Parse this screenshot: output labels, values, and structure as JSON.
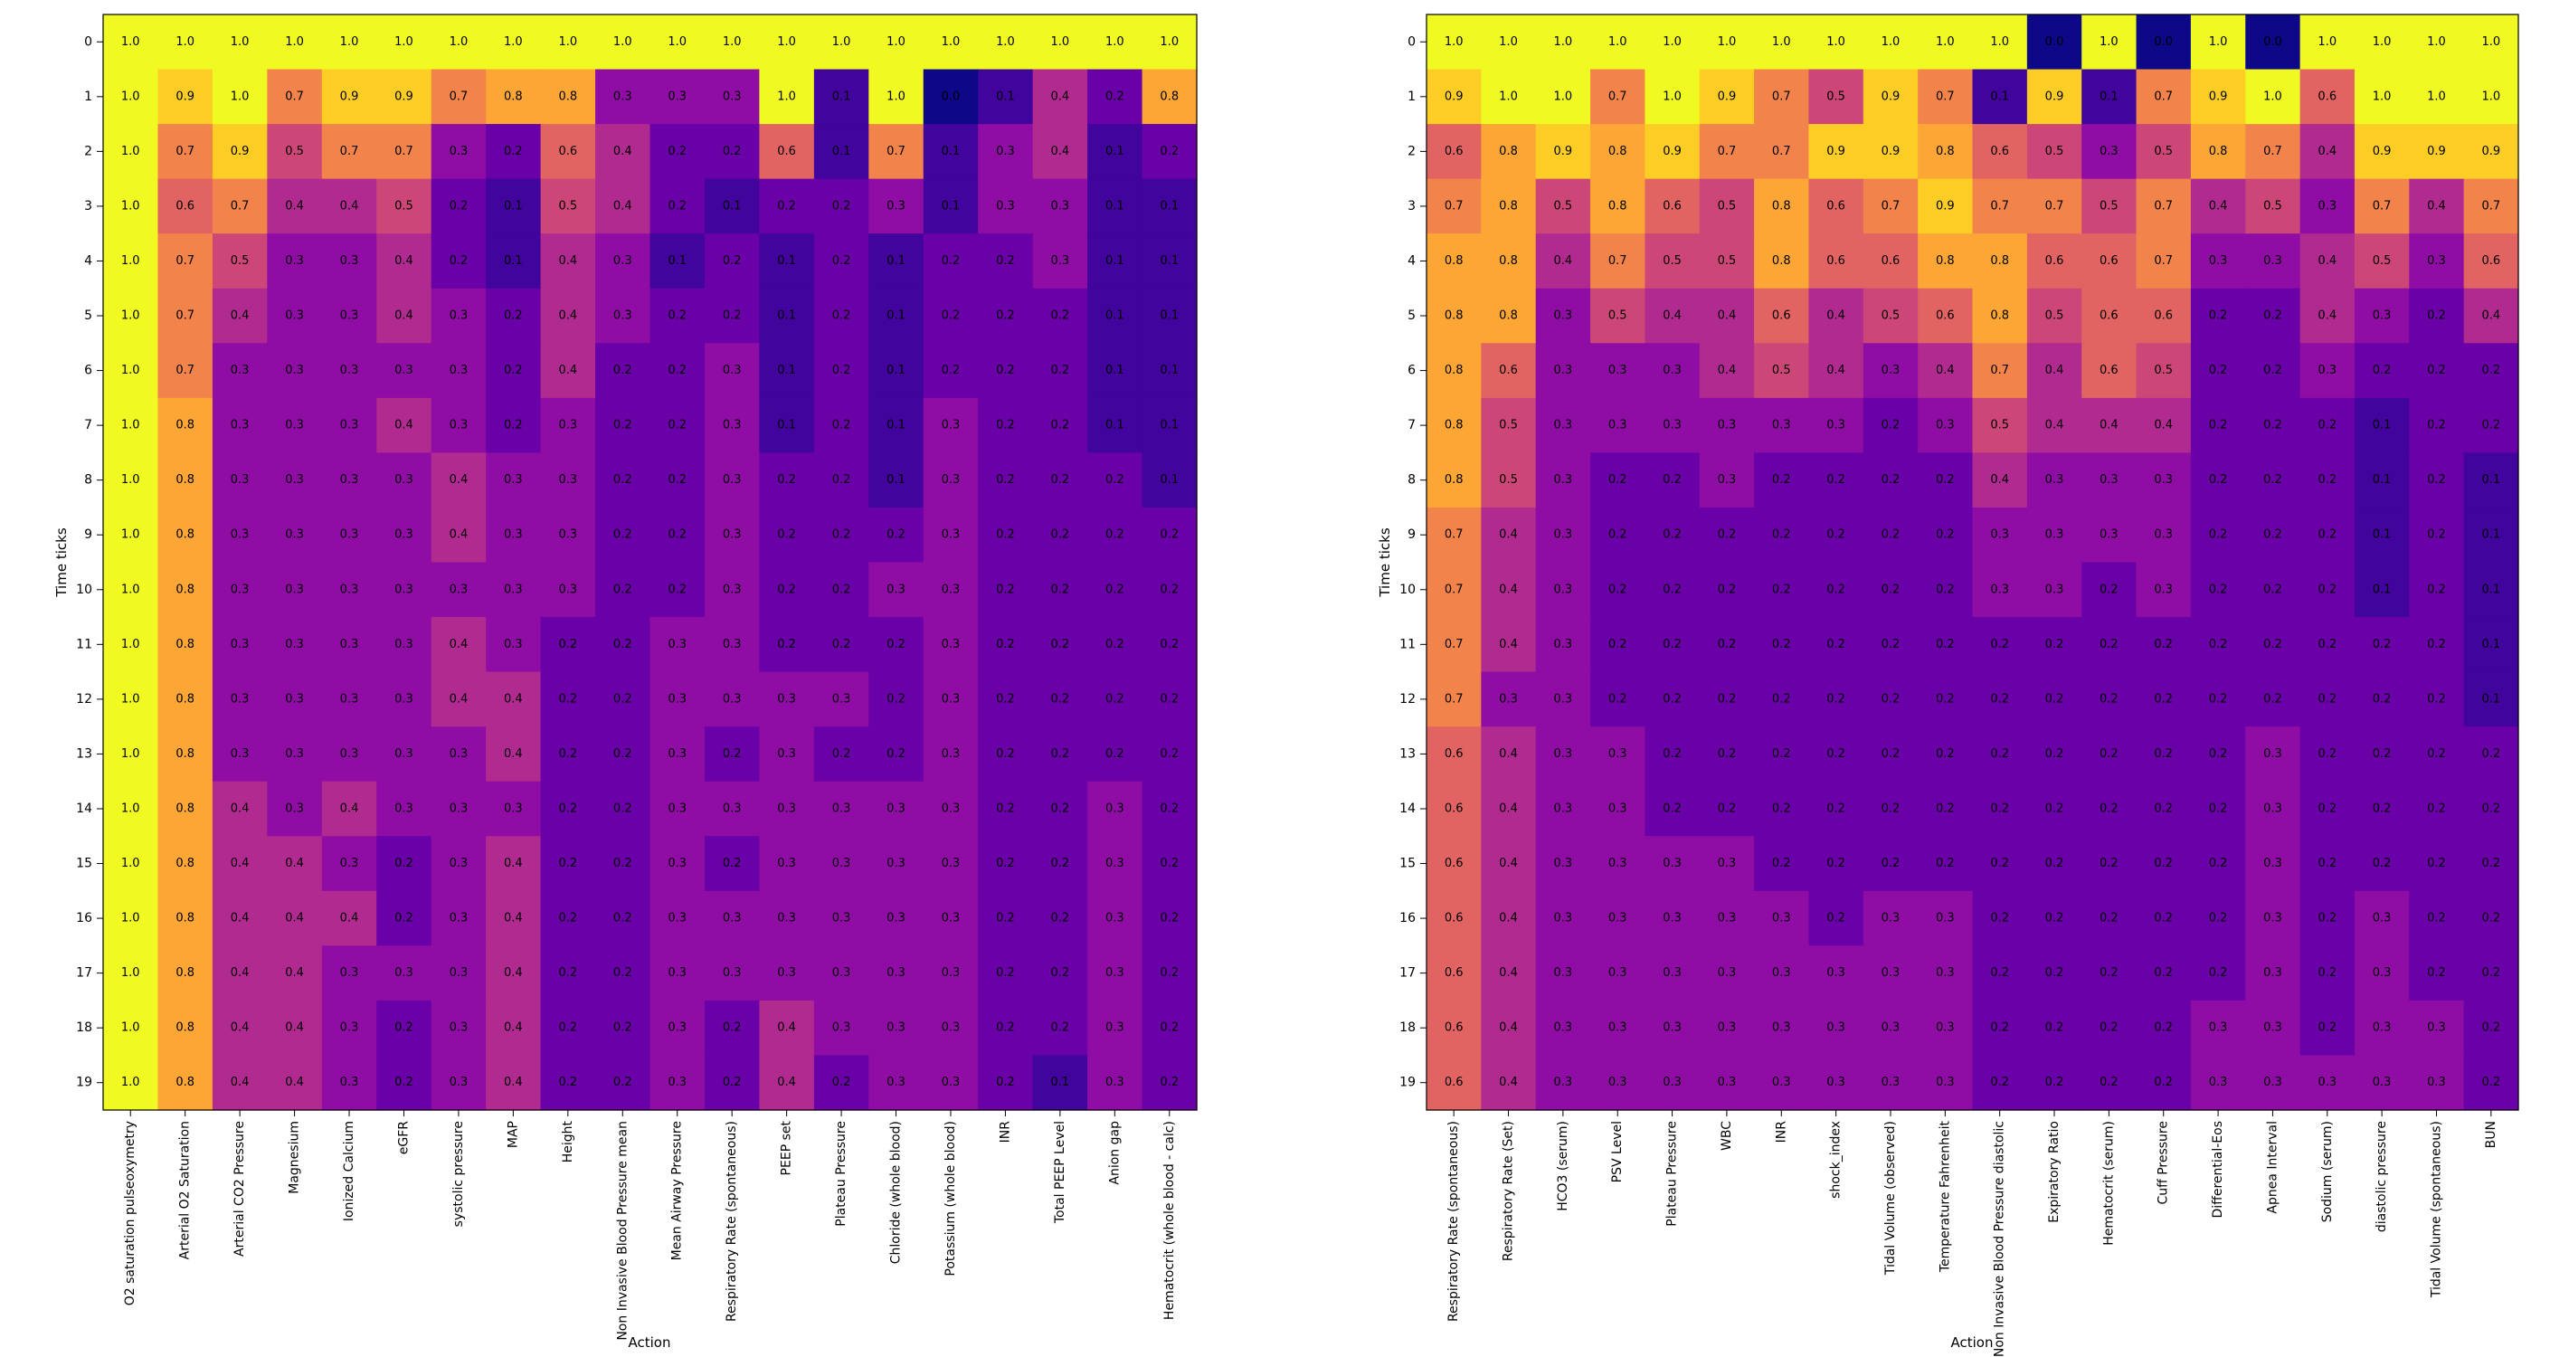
{
  "chart_data": [
    {
      "type": "heatmap",
      "xlabel": "Action",
      "ylabel": "Time ticks",
      "colormap": "plasma",
      "vmin": 0.0,
      "vmax": 1.0,
      "y_ticks": [
        "0",
        "1",
        "2",
        "3",
        "4",
        "5",
        "6",
        "7",
        "8",
        "9",
        "10",
        "11",
        "12",
        "13",
        "14",
        "15",
        "16",
        "17",
        "18",
        "19"
      ],
      "x_labels": [
        "O2 saturation pulseoxymetry",
        "Arterial O2 Saturation",
        "Arterial CO2 Pressure",
        "Magnesium",
        "Ionized Calcium",
        "eGFR",
        "systolic pressure",
        "MAP",
        "Height",
        "Non Invasive Blood Pressure mean",
        "Mean Airway Pressure",
        "Respiratory Rate (spontaneous)",
        "PEEP set",
        "Plateau Pressure",
        "Chloride (whole blood)",
        "Potassium (whole blood)",
        "INR",
        "Total PEEP Level",
        "Anion gap",
        "Hematocrit (whole blood - calc)"
      ],
      "values": [
        [
          1.0,
          1.0,
          1.0,
          1.0,
          1.0,
          1.0,
          1.0,
          1.0,
          1.0,
          1.0,
          1.0,
          1.0,
          1.0,
          1.0,
          1.0,
          1.0,
          1.0,
          1.0,
          1.0,
          1.0
        ],
        [
          1.0,
          0.9,
          1.0,
          0.7,
          0.9,
          0.9,
          0.7,
          0.8,
          0.8,
          0.3,
          0.3,
          0.3,
          1.0,
          0.1,
          1.0,
          0.0,
          0.1,
          0.4,
          0.2,
          0.8
        ],
        [
          1.0,
          0.7,
          0.9,
          0.5,
          0.7,
          0.7,
          0.3,
          0.2,
          0.6,
          0.4,
          0.2,
          0.2,
          0.6,
          0.1,
          0.7,
          0.1,
          0.3,
          0.4,
          0.1,
          0.2
        ],
        [
          1.0,
          0.6,
          0.7,
          0.4,
          0.4,
          0.5,
          0.2,
          0.1,
          0.5,
          0.4,
          0.2,
          0.1,
          0.2,
          0.2,
          0.3,
          0.1,
          0.3,
          0.3,
          0.1,
          0.1
        ],
        [
          1.0,
          0.7,
          0.5,
          0.3,
          0.3,
          0.4,
          0.2,
          0.1,
          0.4,
          0.3,
          0.1,
          0.2,
          0.1,
          0.2,
          0.1,
          0.2,
          0.2,
          0.3,
          0.1,
          0.1
        ],
        [
          1.0,
          0.7,
          0.4,
          0.3,
          0.3,
          0.4,
          0.3,
          0.2,
          0.4,
          0.3,
          0.2,
          0.2,
          0.1,
          0.2,
          0.1,
          0.2,
          0.2,
          0.2,
          0.1,
          0.1
        ],
        [
          1.0,
          0.7,
          0.3,
          0.3,
          0.3,
          0.3,
          0.3,
          0.2,
          0.4,
          0.2,
          0.2,
          0.3,
          0.1,
          0.2,
          0.1,
          0.2,
          0.2,
          0.2,
          0.1,
          0.1
        ],
        [
          1.0,
          0.8,
          0.3,
          0.3,
          0.3,
          0.4,
          0.3,
          0.2,
          0.3,
          0.2,
          0.2,
          0.3,
          0.1,
          0.2,
          0.1,
          0.3,
          0.2,
          0.2,
          0.1,
          0.1
        ],
        [
          1.0,
          0.8,
          0.3,
          0.3,
          0.3,
          0.3,
          0.4,
          0.3,
          0.3,
          0.2,
          0.2,
          0.3,
          0.2,
          0.2,
          0.1,
          0.3,
          0.2,
          0.2,
          0.2,
          0.1
        ],
        [
          1.0,
          0.8,
          0.3,
          0.3,
          0.3,
          0.3,
          0.4,
          0.3,
          0.3,
          0.2,
          0.2,
          0.3,
          0.2,
          0.2,
          0.2,
          0.3,
          0.2,
          0.2,
          0.2,
          0.2
        ],
        [
          1.0,
          0.8,
          0.3,
          0.3,
          0.3,
          0.3,
          0.3,
          0.3,
          0.3,
          0.2,
          0.2,
          0.3,
          0.2,
          0.2,
          0.3,
          0.3,
          0.2,
          0.2,
          0.2,
          0.2
        ],
        [
          1.0,
          0.8,
          0.3,
          0.3,
          0.3,
          0.3,
          0.4,
          0.3,
          0.2,
          0.2,
          0.3,
          0.3,
          0.2,
          0.2,
          0.2,
          0.3,
          0.2,
          0.2,
          0.2,
          0.2
        ],
        [
          1.0,
          0.8,
          0.3,
          0.3,
          0.3,
          0.3,
          0.4,
          0.4,
          0.2,
          0.2,
          0.3,
          0.3,
          0.3,
          0.3,
          0.2,
          0.3,
          0.2,
          0.2,
          0.2,
          0.2
        ],
        [
          1.0,
          0.8,
          0.3,
          0.3,
          0.3,
          0.3,
          0.3,
          0.4,
          0.2,
          0.2,
          0.3,
          0.2,
          0.3,
          0.2,
          0.2,
          0.3,
          0.2,
          0.2,
          0.2,
          0.2
        ],
        [
          1.0,
          0.8,
          0.4,
          0.3,
          0.4,
          0.3,
          0.3,
          0.3,
          0.2,
          0.2,
          0.3,
          0.3,
          0.3,
          0.3,
          0.3,
          0.3,
          0.2,
          0.2,
          0.3,
          0.2
        ],
        [
          1.0,
          0.8,
          0.4,
          0.4,
          0.3,
          0.2,
          0.3,
          0.4,
          0.2,
          0.2,
          0.3,
          0.2,
          0.3,
          0.3,
          0.3,
          0.3,
          0.2,
          0.2,
          0.3,
          0.2
        ],
        [
          1.0,
          0.8,
          0.4,
          0.4,
          0.4,
          0.2,
          0.3,
          0.4,
          0.2,
          0.2,
          0.3,
          0.3,
          0.3,
          0.3,
          0.3,
          0.3,
          0.2,
          0.2,
          0.3,
          0.2
        ],
        [
          1.0,
          0.8,
          0.4,
          0.4,
          0.3,
          0.3,
          0.3,
          0.4,
          0.2,
          0.2,
          0.3,
          0.3,
          0.3,
          0.3,
          0.3,
          0.3,
          0.2,
          0.2,
          0.3,
          0.2
        ],
        [
          1.0,
          0.8,
          0.4,
          0.4,
          0.3,
          0.2,
          0.3,
          0.4,
          0.2,
          0.2,
          0.3,
          0.2,
          0.4,
          0.3,
          0.3,
          0.3,
          0.2,
          0.2,
          0.3,
          0.2
        ],
        [
          1.0,
          0.8,
          0.4,
          0.4,
          0.3,
          0.2,
          0.3,
          0.4,
          0.2,
          0.2,
          0.3,
          0.2,
          0.4,
          0.2,
          0.3,
          0.3,
          0.2,
          0.1,
          0.3,
          0.2
        ]
      ]
    },
    {
      "type": "heatmap",
      "xlabel": "Action",
      "ylabel": "Time ticks",
      "colormap": "plasma",
      "vmin": 0.0,
      "vmax": 1.0,
      "y_ticks": [
        "0",
        "1",
        "2",
        "3",
        "4",
        "5",
        "6",
        "7",
        "8",
        "9",
        "10",
        "11",
        "12",
        "13",
        "14",
        "15",
        "16",
        "17",
        "18",
        "19"
      ],
      "x_labels": [
        "Respiratory Rate (spontaneous)",
        "Respiratory Rate (Set)",
        "HCO3 (serum)",
        "PSV Level",
        "Plateau Pressure",
        "WBC",
        "INR",
        "shock_index",
        "Tidal Volume (observed)",
        "Temperature Fahrenheit",
        "Non Invasive Blood Pressure diastolic",
        "Expiratory Ratio",
        "Hematocrit (serum)",
        "Cuff Pressure",
        "Differential-Eos",
        "Apnea Interval",
        "Sodium (serum)",
        "diastolic pressure",
        "Tidal Volume (spontaneous)",
        "BUN"
      ],
      "values": [
        [
          1.0,
          1.0,
          1.0,
          1.0,
          1.0,
          1.0,
          1.0,
          1.0,
          1.0,
          1.0,
          1.0,
          0.0,
          1.0,
          0.0,
          1.0,
          0.0,
          1.0,
          1.0,
          1.0,
          1.0
        ],
        [
          0.9,
          1.0,
          1.0,
          0.7,
          1.0,
          0.9,
          0.7,
          0.5,
          0.9,
          0.7,
          0.1,
          0.9,
          0.1,
          0.7,
          0.9,
          1.0,
          0.6,
          1.0,
          1.0,
          1.0
        ],
        [
          0.6,
          0.8,
          0.9,
          0.8,
          0.9,
          0.7,
          0.7,
          0.9,
          0.9,
          0.8,
          0.6,
          0.5,
          0.3,
          0.5,
          0.8,
          0.7,
          0.4,
          0.9,
          0.9,
          0.9
        ],
        [
          0.7,
          0.8,
          0.5,
          0.8,
          0.6,
          0.5,
          0.8,
          0.6,
          0.7,
          0.9,
          0.7,
          0.7,
          0.5,
          0.7,
          0.4,
          0.5,
          0.3,
          0.7,
          0.4,
          0.7
        ],
        [
          0.8,
          0.8,
          0.4,
          0.7,
          0.5,
          0.5,
          0.8,
          0.6,
          0.6,
          0.8,
          0.8,
          0.6,
          0.6,
          0.7,
          0.3,
          0.3,
          0.4,
          0.5,
          0.3,
          0.6
        ],
        [
          0.8,
          0.8,
          0.3,
          0.5,
          0.4,
          0.4,
          0.6,
          0.4,
          0.5,
          0.6,
          0.8,
          0.5,
          0.6,
          0.6,
          0.2,
          0.2,
          0.4,
          0.3,
          0.2,
          0.4
        ],
        [
          0.8,
          0.6,
          0.3,
          0.3,
          0.3,
          0.4,
          0.5,
          0.4,
          0.3,
          0.4,
          0.7,
          0.4,
          0.6,
          0.5,
          0.2,
          0.2,
          0.3,
          0.2,
          0.2,
          0.2
        ],
        [
          0.8,
          0.5,
          0.3,
          0.3,
          0.3,
          0.3,
          0.3,
          0.3,
          0.2,
          0.3,
          0.5,
          0.4,
          0.4,
          0.4,
          0.2,
          0.2,
          0.2,
          0.1,
          0.2,
          0.2
        ],
        [
          0.8,
          0.5,
          0.3,
          0.2,
          0.2,
          0.3,
          0.2,
          0.2,
          0.2,
          0.2,
          0.4,
          0.3,
          0.3,
          0.3,
          0.2,
          0.2,
          0.2,
          0.1,
          0.2,
          0.1
        ],
        [
          0.7,
          0.4,
          0.3,
          0.2,
          0.2,
          0.2,
          0.2,
          0.2,
          0.2,
          0.2,
          0.3,
          0.3,
          0.3,
          0.3,
          0.2,
          0.2,
          0.2,
          0.1,
          0.2,
          0.1
        ],
        [
          0.7,
          0.4,
          0.3,
          0.2,
          0.2,
          0.2,
          0.2,
          0.2,
          0.2,
          0.2,
          0.3,
          0.3,
          0.2,
          0.3,
          0.2,
          0.2,
          0.2,
          0.1,
          0.2,
          0.1
        ],
        [
          0.7,
          0.4,
          0.3,
          0.2,
          0.2,
          0.2,
          0.2,
          0.2,
          0.2,
          0.2,
          0.2,
          0.2,
          0.2,
          0.2,
          0.2,
          0.2,
          0.2,
          0.2,
          0.2,
          0.1
        ],
        [
          0.7,
          0.3,
          0.3,
          0.2,
          0.2,
          0.2,
          0.2,
          0.2,
          0.2,
          0.2,
          0.2,
          0.2,
          0.2,
          0.2,
          0.2,
          0.2,
          0.2,
          0.2,
          0.2,
          0.1
        ],
        [
          0.6,
          0.4,
          0.3,
          0.3,
          0.2,
          0.2,
          0.2,
          0.2,
          0.2,
          0.2,
          0.2,
          0.2,
          0.2,
          0.2,
          0.2,
          0.3,
          0.2,
          0.2,
          0.2,
          0.2
        ],
        [
          0.6,
          0.4,
          0.3,
          0.3,
          0.2,
          0.2,
          0.2,
          0.2,
          0.2,
          0.2,
          0.2,
          0.2,
          0.2,
          0.2,
          0.2,
          0.3,
          0.2,
          0.2,
          0.2,
          0.2
        ],
        [
          0.6,
          0.4,
          0.3,
          0.3,
          0.3,
          0.3,
          0.2,
          0.2,
          0.2,
          0.2,
          0.2,
          0.2,
          0.2,
          0.2,
          0.2,
          0.3,
          0.2,
          0.2,
          0.2,
          0.2
        ],
        [
          0.6,
          0.4,
          0.3,
          0.3,
          0.3,
          0.3,
          0.3,
          0.2,
          0.3,
          0.3,
          0.2,
          0.2,
          0.2,
          0.2,
          0.2,
          0.3,
          0.2,
          0.3,
          0.2,
          0.2
        ],
        [
          0.6,
          0.4,
          0.3,
          0.3,
          0.3,
          0.3,
          0.3,
          0.3,
          0.3,
          0.3,
          0.2,
          0.2,
          0.2,
          0.2,
          0.2,
          0.3,
          0.2,
          0.3,
          0.2,
          0.2
        ],
        [
          0.6,
          0.4,
          0.3,
          0.3,
          0.3,
          0.3,
          0.3,
          0.3,
          0.3,
          0.3,
          0.2,
          0.2,
          0.2,
          0.2,
          0.3,
          0.3,
          0.2,
          0.3,
          0.3,
          0.2
        ],
        [
          0.6,
          0.4,
          0.3,
          0.3,
          0.3,
          0.3,
          0.3,
          0.3,
          0.3,
          0.3,
          0.2,
          0.2,
          0.2,
          0.2,
          0.3,
          0.3,
          0.3,
          0.3,
          0.3,
          0.2
        ]
      ]
    }
  ]
}
